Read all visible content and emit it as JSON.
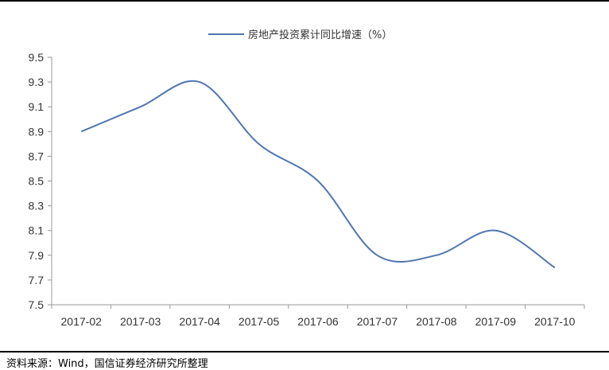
{
  "chart_data": {
    "type": "line",
    "title": "",
    "xlabel": "",
    "ylabel": "",
    "categories": [
      "2017-02",
      "2017-03",
      "2017-04",
      "2017-05",
      "2017-06",
      "2017-07",
      "2017-08",
      "2017-09",
      "2017-10"
    ],
    "series": [
      {
        "name": "房地产投资累计同比增速（%）",
        "values": [
          8.9,
          9.1,
          9.3,
          8.8,
          8.5,
          7.9,
          7.9,
          8.1,
          7.8
        ],
        "color": "#4F76B2"
      }
    ],
    "ylim": [
      7.5,
      9.5
    ],
    "yticks": [
      "9.5",
      "9.3",
      "9.1",
      "8.9",
      "8.7",
      "8.5",
      "8.3",
      "8.1",
      "7.9",
      "7.7",
      "7.5"
    ],
    "grid": false,
    "legend": "top-center",
    "smooth": true
  },
  "source_note": "资料来源：Wind，国信证券经济研究所整理"
}
